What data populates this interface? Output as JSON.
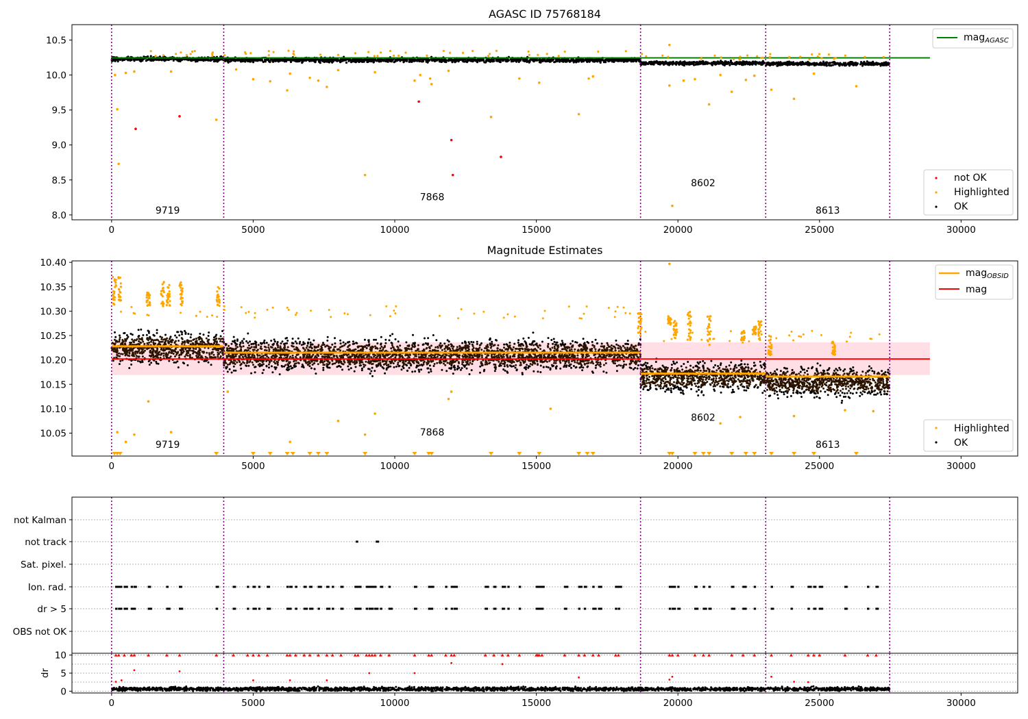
{
  "chart_data": [
    {
      "type": "scatter",
      "title": "AGASC ID 75768184",
      "xlim": [
        -1400,
        32000
      ],
      "ylim": [
        7.93,
        10.72
      ],
      "xticks": [
        0,
        5000,
        10000,
        15000,
        20000,
        25000,
        30000
      ],
      "xtick_labels": [
        "0",
        "5000",
        "10000",
        "15000",
        "20000",
        "25000",
        "30000"
      ],
      "yticks": [
        8.0,
        8.5,
        9.0,
        9.5,
        10.0,
        10.5
      ],
      "ytick_labels": [
        "8.0",
        "8.5",
        "9.0",
        "9.5",
        "10.0",
        "10.5"
      ],
      "obs_boundaries": [
        0,
        3960,
        18680,
        23100,
        27480
      ],
      "obs_labels": [
        {
          "text": "9719",
          "x": 1980,
          "y": 8.02
        },
        {
          "text": "7868",
          "x": 11320,
          "y": 8.21
        },
        {
          "text": "8602",
          "x": 20890,
          "y": 8.41
        },
        {
          "text": "8613",
          "x": 25290,
          "y": 8.02
        }
      ],
      "reference_line": {
        "name": "mag_AGASC",
        "value": 10.245,
        "xmax": 28900,
        "color": "#008000"
      },
      "ok_band": [
        {
          "x0": 0,
          "x1": 3960,
          "center": 10.23,
          "spread": 0.03
        },
        {
          "x0": 3960,
          "x1": 18680,
          "center": 10.215,
          "spread": 0.03
        },
        {
          "x0": 18680,
          "x1": 23100,
          "center": 10.17,
          "spread": 0.025
        },
        {
          "x0": 23100,
          "x1": 27480,
          "center": 10.16,
          "spread": 0.025
        }
      ],
      "series": [
        {
          "name": "not OK",
          "color": "#ff0000",
          "points": [
            [
              850,
              9.23
            ],
            [
              2400,
              9.41
            ],
            [
              10850,
              9.62
            ],
            [
              12000,
              9.07
            ],
            [
              12050,
              8.57
            ],
            [
              13750,
              8.83
            ]
          ]
        },
        {
          "name": "Highlighted",
          "color": "#ffa500",
          "points": [
            [
              200,
              9.51
            ],
            [
              250,
              8.73
            ],
            [
              3700,
              9.36
            ],
            [
              120,
              10.0
            ],
            [
              500,
              10.03
            ],
            [
              800,
              10.05
            ],
            [
              2100,
              10.05
            ],
            [
              4400,
              10.08
            ],
            [
              5000,
              9.94
            ],
            [
              5600,
              9.91
            ],
            [
              6200,
              9.78
            ],
            [
              6300,
              10.02
            ],
            [
              7000,
              9.96
            ],
            [
              7300,
              9.92
            ],
            [
              7600,
              9.83
            ],
            [
              8000,
              10.07
            ],
            [
              8950,
              8.57
            ],
            [
              9300,
              10.04
            ],
            [
              10700,
              9.92
            ],
            [
              10900,
              10.0
            ],
            [
              11250,
              9.95
            ],
            [
              11300,
              9.87
            ],
            [
              11900,
              10.06
            ],
            [
              13400,
              9.4
            ],
            [
              14400,
              9.95
            ],
            [
              15100,
              9.89
            ],
            [
              16500,
              9.44
            ],
            [
              16850,
              9.95
            ],
            [
              17000,
              9.98
            ],
            [
              19700,
              10.43
            ],
            [
              19800,
              8.13
            ],
            [
              19700,
              9.85
            ],
            [
              20200,
              9.92
            ],
            [
              20600,
              9.94
            ],
            [
              21100,
              9.58
            ],
            [
              21500,
              10.0
            ],
            [
              21900,
              9.76
            ],
            [
              22400,
              9.93
            ],
            [
              22700,
              9.99
            ],
            [
              23300,
              9.79
            ],
            [
              24100,
              9.66
            ],
            [
              24800,
              10.02
            ],
            [
              26300,
              9.84
            ]
          ]
        }
      ],
      "legend": [
        {
          "label": "mag",
          "sub": "AGASC",
          "color": "#008000",
          "kind": "line"
        },
        {
          "label": "not OK",
          "color": "#ff0000",
          "kind": "dot"
        },
        {
          "label": "Highlighted",
          "color": "#ffa500",
          "kind": "dot"
        },
        {
          "label": "OK",
          "color": "#000000",
          "kind": "dot"
        }
      ]
    },
    {
      "type": "scatter",
      "title": "Magnitude Estimates",
      "xlim": [
        -1400,
        32000
      ],
      "ylim": [
        10.003,
        10.403
      ],
      "xticks": [
        0,
        5000,
        10000,
        15000,
        20000,
        25000,
        30000
      ],
      "xtick_labels": [
        "0",
        "5000",
        "10000",
        "15000",
        "20000",
        "25000",
        "30000"
      ],
      "yticks": [
        10.05,
        10.1,
        10.15,
        10.2,
        10.25,
        10.3,
        10.35,
        10.4
      ],
      "ytick_labels": [
        "10.05",
        "10.10",
        "10.15",
        "10.20",
        "10.25",
        "10.30",
        "10.35",
        "10.40"
      ],
      "obs_boundaries": [
        0,
        3960,
        18680,
        23100,
        27480
      ],
      "obs_labels": [
        {
          "text": "9719",
          "x": 1980,
          "y": 10.02
        },
        {
          "text": "7868",
          "x": 11320,
          "y": 10.045
        },
        {
          "text": "8602",
          "x": 20890,
          "y": 10.075
        },
        {
          "text": "8613",
          "x": 25290,
          "y": 10.02
        }
      ],
      "mag_line": {
        "name": "mag",
        "value": 10.202,
        "band": [
          10.169,
          10.236
        ],
        "xmax": 28900,
        "color": "#ff0000"
      },
      "obsid_mags": [
        {
          "x0": 0,
          "x1": 3960,
          "value": 10.228
        },
        {
          "x0": 3960,
          "x1": 18680,
          "value": 10.215
        },
        {
          "x0": 18680,
          "x1": 23100,
          "value": 10.172
        },
        {
          "x0": 23100,
          "x1": 27480,
          "value": 10.166
        }
      ],
      "ok_band": [
        {
          "x0": 0,
          "x1": 3960,
          "center": 10.225,
          "spread": 0.03
        },
        {
          "x0": 3960,
          "x1": 18680,
          "center": 10.21,
          "spread": 0.03
        },
        {
          "x0": 18680,
          "x1": 23100,
          "center": 10.165,
          "spread": 0.028
        },
        {
          "x0": 23100,
          "x1": 27480,
          "center": 10.155,
          "spread": 0.028
        }
      ],
      "highlight_clusters": [
        {
          "x": 100,
          "lo": 10.31,
          "hi": 10.37
        },
        {
          "x": 300,
          "lo": 10.32,
          "hi": 10.37
        },
        {
          "x": 1300,
          "lo": 10.31,
          "hi": 10.34
        },
        {
          "x": 1800,
          "lo": 10.31,
          "hi": 10.36
        },
        {
          "x": 2000,
          "lo": 10.31,
          "hi": 10.36
        },
        {
          "x": 2450,
          "lo": 10.31,
          "hi": 10.36
        },
        {
          "x": 3750,
          "lo": 10.31,
          "hi": 10.35
        },
        {
          "x": 18650,
          "lo": 10.25,
          "hi": 10.3
        },
        {
          "x": 19700,
          "lo": 10.27,
          "hi": 10.29
        },
        {
          "x": 19900,
          "lo": 10.25,
          "hi": 10.28
        },
        {
          "x": 20400,
          "lo": 10.24,
          "hi": 10.3
        },
        {
          "x": 21100,
          "lo": 10.23,
          "hi": 10.29
        },
        {
          "x": 22300,
          "lo": 10.24,
          "hi": 10.26
        },
        {
          "x": 22700,
          "lo": 10.25,
          "hi": 10.27
        },
        {
          "x": 22900,
          "lo": 10.24,
          "hi": 10.28
        },
        {
          "x": 23250,
          "lo": 10.21,
          "hi": 10.25
        },
        {
          "x": 25500,
          "lo": 10.21,
          "hi": 10.24
        }
      ],
      "highlight_points": [
        [
          1300,
          10.115
        ],
        [
          2100,
          10.052
        ],
        [
          4100,
          10.135
        ],
        [
          8000,
          10.075
        ],
        [
          9300,
          10.09
        ],
        [
          11900,
          10.12
        ],
        [
          12000,
          10.135
        ],
        [
          15500,
          10.1
        ],
        [
          21500,
          10.07
        ],
        [
          22200,
          10.083
        ],
        [
          24100,
          10.085
        ],
        [
          25900,
          10.097
        ],
        [
          26900,
          10.095
        ],
        [
          500,
          10.032
        ],
        [
          200,
          10.052
        ],
        [
          800,
          10.047
        ],
        [
          6300,
          10.032
        ],
        [
          8950,
          10.047
        ],
        [
          19700,
          10.397
        ]
      ],
      "floor_markers": [
        100,
        200,
        300,
        3700,
        5000,
        5600,
        6200,
        6400,
        7000,
        7300,
        7600,
        8950,
        10700,
        11200,
        11300,
        13400,
        14400,
        15100,
        16500,
        16800,
        17000,
        19700,
        19800,
        20600,
        20900,
        21100,
        21900,
        22400,
        22700,
        23300,
        24100,
        24800,
        26300
      ],
      "legend": [
        {
          "label": "mag",
          "sub": "OBSID",
          "color": "#ffa500",
          "kind": "line"
        },
        {
          "label": "mag",
          "color": "#ff0000",
          "kind": "line"
        },
        {
          "label": "Highlighted",
          "color": "#ffa500",
          "kind": "dot"
        },
        {
          "label": "OK",
          "color": "#000000",
          "kind": "dot"
        }
      ]
    },
    {
      "type": "scatter",
      "title": "",
      "xlim": [
        -1400,
        32000
      ],
      "categories": [
        "not Kalman",
        "not track",
        "Sat. pixel.",
        "Ion. rad.",
        "dr > 5",
        "OBS not OK"
      ],
      "obs_boundaries": [
        0,
        3960,
        18680,
        23100,
        27480
      ],
      "flags": {
        "not track": [
          8650,
          9350
        ],
        "Ion. rad.": [
          150,
          250,
          450,
          700,
          800,
          1300,
          1950,
          2400,
          3700,
          4300,
          4800,
          5000,
          5200,
          5500,
          6200,
          6300,
          6500,
          6800,
          7000,
          7300,
          7600,
          7800,
          8100,
          8600,
          8700,
          9000,
          9100,
          9200,
          9300,
          9500,
          9800,
          10700,
          11200,
          11300,
          11800,
          12000,
          12100,
          13200,
          13500,
          13800,
          14000,
          14400,
          15000,
          15050,
          15100,
          15200,
          16000,
          16500,
          16700,
          17000,
          17200,
          17800,
          17900,
          19700,
          19800,
          20000,
          20600,
          20900,
          21100,
          21900,
          22300,
          22700,
          23300,
          24000,
          24600,
          24800,
          25000,
          25900,
          26700,
          27000
        ],
        "dr > 5": [
          150,
          250,
          450,
          700,
          800,
          1300,
          1950,
          2400,
          3700,
          4300,
          4800,
          5000,
          5200,
          5500,
          6200,
          6300,
          6500,
          6800,
          7000,
          7300,
          7600,
          7800,
          8100,
          8600,
          8700,
          9000,
          9100,
          9200,
          9300,
          9500,
          9800,
          10700,
          11200,
          11300,
          11800,
          12000,
          12100,
          13200,
          13500,
          13800,
          14000,
          14400,
          15000,
          15050,
          15100,
          15200,
          16000,
          16500,
          16700,
          17000,
          17200,
          17800,
          17900,
          19700,
          19800,
          20000,
          20600,
          20900,
          21100,
          21900,
          22300,
          22700,
          23300,
          24000,
          24600,
          24800,
          25000,
          25900,
          26700,
          27000
        ]
      }
    },
    {
      "type": "scatter",
      "title": "",
      "ylabel": "dr",
      "xlim": [
        -1400,
        32000
      ],
      "ylim": [
        -0.5,
        10.5
      ],
      "xticks": [
        0,
        5000,
        10000,
        15000,
        20000,
        25000,
        30000
      ],
      "xtick_labels": [
        "0",
        "5000",
        "10000",
        "15000",
        "20000",
        "25000",
        "30000"
      ],
      "yticks": [
        0,
        5,
        10
      ],
      "ytick_labels": [
        "0",
        "5",
        "10"
      ],
      "obs_boundaries": [
        0,
        3960,
        18680,
        23100,
        27480
      ],
      "ok_band": {
        "x0": 0,
        "x1": 27480,
        "center": 0.6,
        "spread": 0.5
      },
      "capped_points": [
        150,
        250,
        450,
        700,
        800,
        1300,
        1950,
        2400,
        3700,
        4300,
        4800,
        5000,
        5200,
        5500,
        6200,
        6300,
        6500,
        6800,
        7000,
        7300,
        7600,
        7800,
        8100,
        8600,
        8700,
        9000,
        9100,
        9200,
        9300,
        9500,
        9800,
        10700,
        11200,
        11300,
        11800,
        12000,
        12100,
        13200,
        13500,
        13800,
        14000,
        14400,
        15000,
        15050,
        15100,
        15200,
        16000,
        16500,
        16700,
        17000,
        17200,
        17800,
        17900,
        19700,
        19800,
        20000,
        20600,
        20900,
        21100,
        21900,
        22300,
        22700,
        23300,
        24000,
        24600,
        24800,
        25000,
        25900,
        26700,
        27000
      ],
      "outlier_points": [
        [
          150,
          2.6
        ],
        [
          350,
          3.0
        ],
        [
          800,
          5.8
        ],
        [
          2400,
          5.5
        ],
        [
          5000,
          3.0
        ],
        [
          6300,
          3.0
        ],
        [
          7600,
          3.0
        ],
        [
          9100,
          5.0
        ],
        [
          10700,
          5.0
        ],
        [
          12000,
          7.8
        ],
        [
          13800,
          7.5
        ],
        [
          16500,
          3.8
        ],
        [
          19700,
          3.2
        ],
        [
          19800,
          4.0
        ],
        [
          23300,
          4.0
        ],
        [
          24100,
          2.6
        ],
        [
          24600,
          2.5
        ]
      ]
    }
  ]
}
